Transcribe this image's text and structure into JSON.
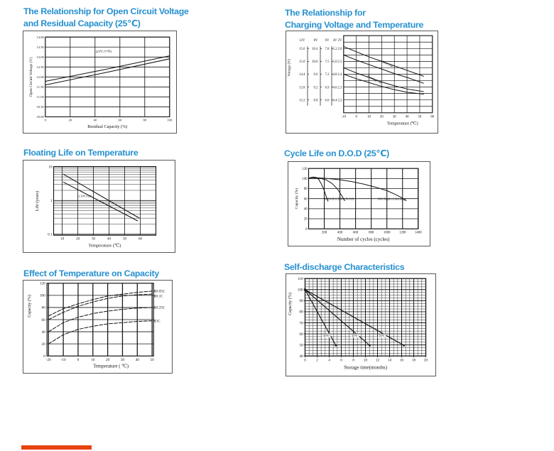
{
  "page": {
    "background": "#ffffff",
    "title_color": "#2791d0",
    "ink": "#141414",
    "accent_bar_color": "#e8430e"
  },
  "chart_data": [
    {
      "id": "ocv",
      "type": "line",
      "title_lines": [
        "The Relationship for Open Circuit Voltage",
        "and Residual Capacity (25℃)"
      ],
      "xlabel": "Residual Capacity (%)",
      "ylabel": "Open Circuit Voltage (V)",
      "xlim": [
        0,
        100
      ],
      "ylim": [
        10,
        14
      ],
      "xticks": [
        "0",
        "20",
        "40",
        "60",
        "80",
        "100"
      ],
      "yticks": [
        "10.00",
        "10.50",
        "11.00",
        "11.50",
        "12.00",
        "12.50",
        "13.00",
        "13.50",
        "14.00"
      ],
      "annotation": {
        "text": "(25℃/77℉)",
        "x": 47,
        "y": 13.22
      },
      "series": [
        {
          "name": "ocv-upper-line",
          "x": [
            0,
            50,
            100
          ],
          "y": [
            11.78,
            12.4,
            13.06
          ]
        },
        {
          "name": "ocv-lower-line",
          "x": [
            0,
            50,
            100
          ],
          "y": [
            11.6,
            12.24,
            12.91
          ]
        }
      ]
    },
    {
      "id": "cvt",
      "type": "line",
      "title_lines": [
        "The Relationship for",
        "Charging Voltage and Temperature"
      ],
      "xlabel": "Temperature (℃)",
      "ylabel": "Voltage (V)",
      "xlim": [
        -10,
        60
      ],
      "ylim": [
        2.1,
        2.7
      ],
      "xticks": [
        "-10",
        "0",
        "10",
        "20",
        "30",
        "40",
        "50",
        "60"
      ],
      "scale_headers": [
        "12V",
        "8V",
        "6V",
        "4V",
        "2V"
      ],
      "scale_values": [
        2.6,
        2.5,
        2.4,
        2.3,
        2.2
      ],
      "scale_rows": [
        [
          "15.6",
          "10.4",
          "7.8",
          "5.2",
          "2.6"
        ],
        [
          "15.0",
          "10.0",
          "7.5",
          "5.0",
          "2.5"
        ],
        [
          "14.4",
          "9.6",
          "7.2",
          "4.8",
          "2.4"
        ],
        [
          "13.8",
          "9.2",
          "6.9",
          "4.6",
          "2.3"
        ],
        [
          "13.2",
          "8.8",
          "6.6",
          "4.4",
          "2.2"
        ]
      ],
      "series": [
        {
          "name": "cycle-use-upper",
          "x": [
            -10,
            0,
            10,
            20,
            30,
            40,
            53
          ],
          "y": [
            2.615,
            2.575,
            2.535,
            2.5,
            2.465,
            2.43,
            2.385
          ]
        },
        {
          "name": "cycle-use-lower",
          "x": [
            -10,
            0,
            10,
            20,
            30,
            40,
            53
          ],
          "y": [
            2.55,
            2.51,
            2.475,
            2.44,
            2.405,
            2.375,
            2.33
          ]
        },
        {
          "name": "floating-use-upper",
          "x": [
            -10,
            0,
            10,
            20,
            30,
            40,
            53
          ],
          "y": [
            2.45,
            2.41,
            2.375,
            2.34,
            2.31,
            2.285,
            2.265
          ]
        },
        {
          "name": "floating-use-lower",
          "x": [
            -10,
            0,
            10,
            20,
            30,
            40,
            53
          ],
          "y": [
            2.4,
            2.365,
            2.335,
            2.305,
            2.28,
            2.26,
            2.245
          ]
        }
      ],
      "line_labels": [
        {
          "text": "Cycle Use",
          "x": 24,
          "y": 2.475,
          "angle": 27
        },
        {
          "text": "Floating Use",
          "x": 14,
          "y": 2.353,
          "angle": 27
        }
      ]
    },
    {
      "id": "flt",
      "type": "line",
      "title_lines": [
        "Floating Life on Temperature"
      ],
      "xlabel": "Temperature (℃)",
      "ylabel": "Life (years)",
      "xlim": [
        4.5,
        70
      ],
      "ylim": [
        0.09,
        10
      ],
      "ylog": true,
      "xticks": [
        "10",
        "20",
        "30",
        "40",
        "50",
        "60"
      ],
      "yticks": [
        "10",
        "1",
        "0.1"
      ],
      "annotation": {
        "text": "2.30V/Cell",
        "x": 24.5,
        "y": 1.25
      },
      "series": [
        {
          "name": "float-life-upper",
          "x": [
            10.8,
            59.4
          ],
          "y": [
            6.0,
            0.3
          ]
        },
        {
          "name": "float-life-lower",
          "x": [
            10.8,
            58.2
          ],
          "y": [
            3.5,
            0.25
          ]
        }
      ]
    },
    {
      "id": "cyc",
      "type": "line",
      "title_lines": [
        "Cycle Life on D.O.D (25℃)"
      ],
      "xlabel": "Number of cycles (cycles)",
      "ylabel": "Capacity (%)",
      "xlim": [
        0,
        1400
      ],
      "ylim": [
        0,
        120
      ],
      "xticks": [
        "200",
        "400",
        "600",
        "800",
        "1000",
        "1200",
        "1400"
      ],
      "yticks": [
        "0",
        "20",
        "40",
        "60",
        "80",
        "100",
        "120"
      ],
      "series": [
        {
          "name": "dod-100",
          "x": [
            0,
            25,
            60,
            100,
            130,
            160,
            195,
            230,
            248
          ],
          "y": [
            100,
            102,
            103,
            102,
            98,
            90,
            78,
            62,
            55
          ]
        },
        {
          "name": "dod-50",
          "x": [
            0,
            80,
            160,
            230,
            300,
            370,
            430,
            460
          ],
          "y": [
            100,
            100.5,
            100,
            97,
            90,
            79,
            64,
            56
          ]
        },
        {
          "name": "dod-30",
          "x": [
            0,
            100,
            250,
            400,
            550,
            700,
            850,
            1000,
            1100,
            1200,
            1245
          ],
          "y": [
            100,
            101.5,
            100,
            97.5,
            94,
            89,
            83,
            76,
            69,
            61,
            56
          ]
        }
      ],
      "line_labels": [
        {
          "text": "100% D.O.D.",
          "x": 200,
          "y": 57.5
        },
        {
          "text": "50% D.O.D.",
          "x": 395,
          "y": 57.5
        },
        {
          "text": "30% Depth of discharge",
          "x": 880,
          "y": 57.5
        }
      ]
    },
    {
      "id": "etc",
      "type": "line",
      "title_lines": [
        "Effect of Temperature on Capacity"
      ],
      "xlabel": "Temperature ( ℃)",
      "ylabel": "Capacity (%)",
      "xlim": [
        -21,
        51
      ],
      "ylim": [
        0,
        120
      ],
      "xticks": [
        "-20",
        "-10",
        "0",
        "10",
        "20",
        "30",
        "40",
        "50"
      ],
      "yticks": [
        "0",
        "20",
        "40",
        "60",
        "80",
        "100",
        "120"
      ],
      "series": [
        {
          "name": "rate-0.05C",
          "label": "0.05C",
          "label_y": 107,
          "x": [
            -20,
            -10,
            0,
            10,
            20,
            30,
            40,
            50
          ],
          "y": [
            66,
            78,
            86,
            93,
            99,
            102,
            105,
            107
          ]
        },
        {
          "name": "rate-0.1C",
          "label": "0.1C",
          "label_y": 99,
          "x": [
            -20,
            -10,
            0,
            10,
            20,
            30,
            40,
            50
          ],
          "y": [
            60,
            72,
            82,
            89,
            95,
            99,
            101,
            102
          ]
        },
        {
          "name": "rate-0.25C",
          "label": "0.25C",
          "label_y": 80,
          "x": [
            -20,
            -10,
            0,
            10,
            20,
            30,
            40,
            50
          ],
          "y": [
            40,
            55,
            64,
            70,
            74,
            77,
            79,
            80
          ]
        },
        {
          "name": "rate-1C",
          "label": "1C",
          "label_y": 58,
          "x": [
            -20,
            -10,
            0,
            10,
            20,
            30,
            40,
            50
          ],
          "y": [
            20,
            35,
            44,
            49,
            53,
            55,
            57,
            58
          ]
        }
      ]
    },
    {
      "id": "sdc",
      "type": "line",
      "title_lines": [
        "Self-discharge Characteristics"
      ],
      "xlabel": "Storage time(months)",
      "ylabel": "Capacity (%)",
      "xlim": [
        0,
        20
      ],
      "ylim": [
        40,
        110
      ],
      "xticks": [
        "0",
        "2",
        "4",
        "6",
        "8",
        "10",
        "12",
        "14",
        "16",
        "18",
        "20"
      ],
      "yticks": [
        "40",
        "50",
        "60",
        "70",
        "80",
        "90",
        "100",
        "110"
      ],
      "series": [
        {
          "name": "storage-40C",
          "x": [
            0,
            5.1
          ],
          "y": [
            100,
            49.6
          ]
        },
        {
          "name": "storage-30C",
          "x": [
            0,
            10.7
          ],
          "y": [
            100,
            49.6
          ]
        },
        {
          "name": "storage-20C",
          "x": [
            0,
            16.35
          ],
          "y": [
            100,
            49.6
          ]
        }
      ],
      "line_labels": [
        {
          "text": "40℃",
          "x": 3.0,
          "y": 57
        },
        {
          "text": "30℃",
          "x": 7.7,
          "y": 57
        },
        {
          "text": "20℃",
          "x": 12.2,
          "y": 57
        }
      ]
    }
  ]
}
